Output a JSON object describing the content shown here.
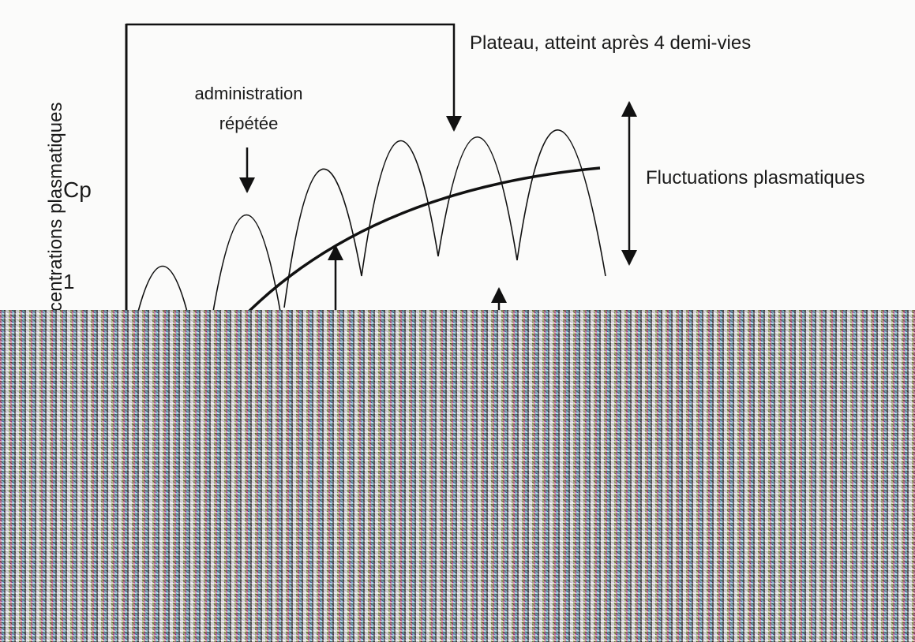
{
  "axis_label": "centrations plasmatiques",
  "y_labels": [
    "Cp",
    "1"
  ],
  "annotations": {
    "plateau": "Plateau, atteint après 4 demi-vies",
    "administration": [
      "administration",
      "répétée"
    ],
    "fluctuations": "Fluctuations plasmatiques"
  }
}
